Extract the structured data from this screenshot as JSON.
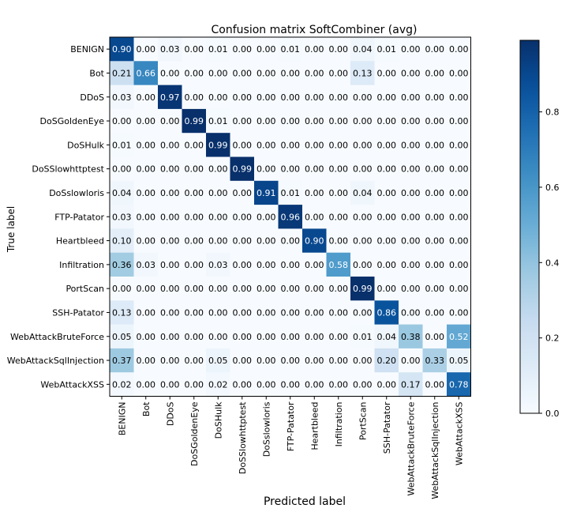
{
  "chart_data": {
    "type": "heatmap",
    "title": "Confusion matrix SoftCombiner  (avg)",
    "xlabel": "Predicted label",
    "ylabel": "True label",
    "labels": [
      "BENIGN",
      "Bot",
      "DDoS",
      "DoSGoldenEye",
      "DoSHulk",
      "DoSSlowhttptest",
      "DoSslowloris",
      "FTP-Patator",
      "Heartbleed",
      "Infiltration",
      "PortScan",
      "SSH-Patator",
      "WebAttackBruteForce",
      "WebAttackSqlInjection",
      "WebAttackXSS"
    ],
    "matrix": [
      [
        0.9,
        0.0,
        0.03,
        0.0,
        0.01,
        0.0,
        0.0,
        0.01,
        0.0,
        0.0,
        0.04,
        0.01,
        0.0,
        0.0,
        0.0
      ],
      [
        0.21,
        0.66,
        0.0,
        0.0,
        0.0,
        0.0,
        0.0,
        0.0,
        0.0,
        0.0,
        0.13,
        0.0,
        0.0,
        0.0,
        0.0
      ],
      [
        0.03,
        0.0,
        0.97,
        0.0,
        0.0,
        0.0,
        0.0,
        0.0,
        0.0,
        0.0,
        0.0,
        0.0,
        0.0,
        0.0,
        0.0
      ],
      [
        0.0,
        0.0,
        0.0,
        0.99,
        0.01,
        0.0,
        0.0,
        0.0,
        0.0,
        0.0,
        0.0,
        0.0,
        0.0,
        0.0,
        0.0
      ],
      [
        0.01,
        0.0,
        0.0,
        0.0,
        0.99,
        0.0,
        0.0,
        0.0,
        0.0,
        0.0,
        0.0,
        0.0,
        0.0,
        0.0,
        0.0
      ],
      [
        0.0,
        0.0,
        0.0,
        0.0,
        0.0,
        0.99,
        0.0,
        0.0,
        0.0,
        0.0,
        0.0,
        0.0,
        0.0,
        0.0,
        0.0
      ],
      [
        0.04,
        0.0,
        0.0,
        0.0,
        0.0,
        0.0,
        0.91,
        0.01,
        0.0,
        0.0,
        0.04,
        0.0,
        0.0,
        0.0,
        0.0
      ],
      [
        0.03,
        0.0,
        0.0,
        0.0,
        0.0,
        0.0,
        0.0,
        0.96,
        0.0,
        0.0,
        0.0,
        0.0,
        0.0,
        0.0,
        0.0
      ],
      [
        0.1,
        0.0,
        0.0,
        0.0,
        0.0,
        0.0,
        0.0,
        0.0,
        0.9,
        0.0,
        0.0,
        0.0,
        0.0,
        0.0,
        0.0
      ],
      [
        0.36,
        0.03,
        0.0,
        0.0,
        0.03,
        0.0,
        0.0,
        0.0,
        0.0,
        0.58,
        0.0,
        0.0,
        0.0,
        0.0,
        0.0
      ],
      [
        0.0,
        0.0,
        0.0,
        0.0,
        0.0,
        0.0,
        0.0,
        0.0,
        0.0,
        0.0,
        0.99,
        0.0,
        0.0,
        0.0,
        0.0
      ],
      [
        0.13,
        0.0,
        0.0,
        0.0,
        0.0,
        0.0,
        0.0,
        0.0,
        0.0,
        0.0,
        0.0,
        0.86,
        0.0,
        0.0,
        0.0
      ],
      [
        0.05,
        0.0,
        0.0,
        0.0,
        0.0,
        0.0,
        0.0,
        0.0,
        0.0,
        0.0,
        0.01,
        0.04,
        0.38,
        0.0,
        0.52
      ],
      [
        0.37,
        0.0,
        0.0,
        0.0,
        0.05,
        0.0,
        0.0,
        0.0,
        0.0,
        0.0,
        0.0,
        0.2,
        0.0,
        0.33,
        0.05
      ],
      [
        0.02,
        0.0,
        0.0,
        0.0,
        0.02,
        0.0,
        0.0,
        0.0,
        0.0,
        0.0,
        0.0,
        0.0,
        0.17,
        0.0,
        0.78
      ]
    ],
    "colorscale": "Blues",
    "colorbar": {
      "range": [
        0,
        0.99
      ],
      "ticks": [
        "0.0",
        "0.2",
        "0.4",
        "0.6",
        "0.8"
      ]
    }
  }
}
